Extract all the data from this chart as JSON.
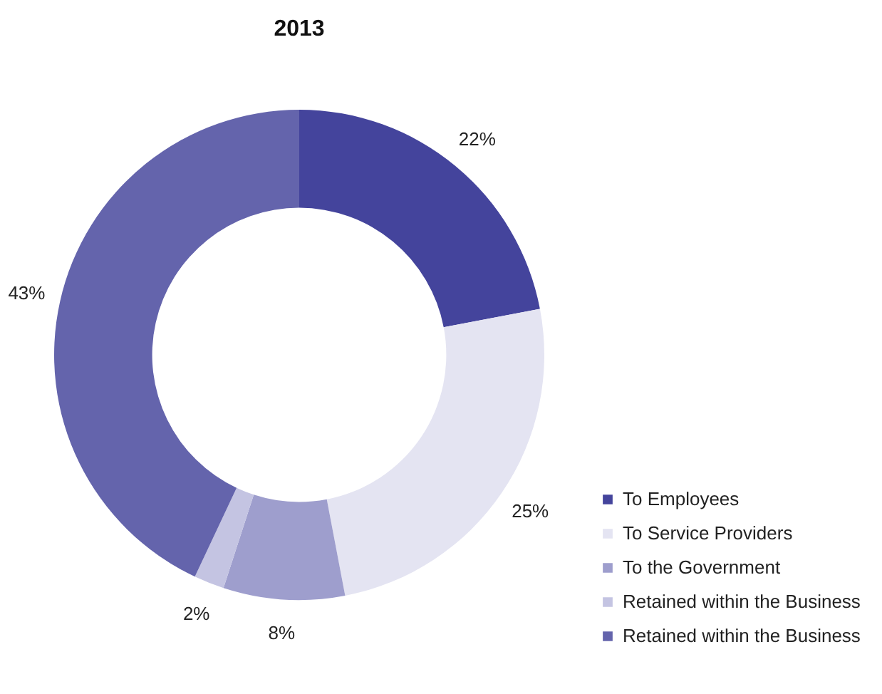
{
  "chart_data": {
    "type": "donut",
    "title": "2013",
    "categories": [
      "To Employees",
      "To Service Providers",
      "To the Government",
      "Retained within the Business",
      "Retained within the Business"
    ],
    "values": [
      22,
      25,
      8,
      2,
      43
    ],
    "colors": [
      "#44449c",
      "#e4e4f2",
      "#9e9ecd",
      "#c4c4e2",
      "#6464ac"
    ],
    "value_labels": [
      "22%",
      "25%",
      "8%",
      "2%",
      "43%"
    ],
    "legend": "bottom right"
  }
}
